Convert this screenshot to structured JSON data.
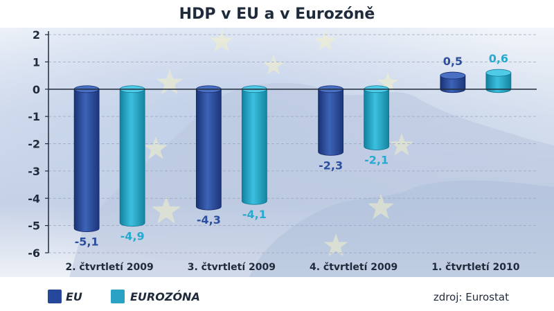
{
  "chart_data": {
    "type": "bar",
    "title": "HDP v EU a v Eurozóně",
    "categories": [
      "2. čtvrtletí 2009",
      "3. čtvrtletí 2009",
      "4. čtvrtletí 2009",
      "1. čtvrtletí 2010"
    ],
    "series": [
      {
        "name": "EU",
        "values": [
          -5.1,
          -4.3,
          -2.3,
          0.5
        ],
        "labels": [
          "-5,1",
          "-4,3",
          "-2,3",
          "0,5"
        ],
        "color": "#26479a",
        "label_color": "#2b4e9e"
      },
      {
        "name": "EUROZÓNA",
        "values": [
          -4.9,
          -4.1,
          -2.1,
          0.6
        ],
        "labels": [
          "-4,9",
          "-4,1",
          "-2,1",
          "0,6"
        ],
        "color": "#2aa2c4",
        "label_color": "#27a9d0"
      }
    ],
    "yticks": [
      "2",
      "1",
      "0",
      "-1",
      "-2",
      "-3",
      "-4",
      "-5",
      "-6"
    ],
    "ylim": [
      -6,
      2
    ],
    "grid": true,
    "legend_position": "bottom-left"
  },
  "source": "zdroj: Eurostat",
  "background": "EU flag stars over map of Europe (decorative)"
}
